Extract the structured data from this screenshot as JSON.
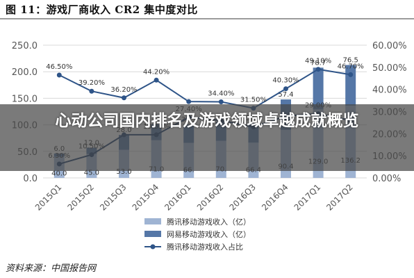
{
  "figure": {
    "title": "图 11：游戏厂商收入 CR2 集中度对比",
    "source": "资料来源：中国报告网"
  },
  "overlay": {
    "text": "心动公司国内排名及游戏领域卓越成就概览"
  },
  "colors": {
    "tencent_bar": "#9fb4d3",
    "netease_bar": "#5577a7",
    "line": "#2e5488",
    "grid": "#d8d8d8",
    "overlay": "#464646"
  },
  "chart_data": {
    "type": "bar",
    "categories": [
      "2015Q1",
      "2015Q2",
      "2015Q3",
      "2015Q4",
      "2016Q1",
      "2016Q2",
      "2016Q3",
      "2016Q4",
      "2017Q1",
      "2017Q2"
    ],
    "left_axis": {
      "ylim": [
        0,
        250
      ],
      "ticks": [
        "0.0",
        "50.0",
        "100.0",
        "150.0",
        "200.0",
        "250.0"
      ]
    },
    "right_axis": {
      "ylim": [
        0,
        60
      ],
      "ticks": [
        "0.00%",
        "10.00%",
        "20.00%",
        "30.00%",
        "40.00%",
        "50.00%",
        "60.00%"
      ]
    },
    "series": [
      {
        "name": "腾讯移动游戏收入（亿）",
        "kind": "bar",
        "axis": "left",
        "values": [
          40.0,
          45.0,
          53.0,
          71.0,
          66.0,
          70.0,
          66.4,
          90.4,
          129.0,
          136.2
        ],
        "labels": [
          "40.0",
          "45.0",
          "53.0",
          "71.0",
          "66.",
          "70.",
          "66.4",
          "90.4",
          "129.0",
          "136.2"
        ]
      },
      {
        "name": "网易移动游戏收入（亿）",
        "kind": "bar",
        "axis": "left",
        "values": [
          6.0,
          12.0,
          28.0,
          30.0,
          34.5,
          36.0,
          37.0,
          57.4,
          78.7,
          76.5
        ],
        "labels": [
          "6.0",
          "12.0",
          "28.0",
          "",
          "34.5",
          "",
          "37.0",
          "57.4",
          "78.7",
          "76.5"
        ]
      },
      {
        "name": "腾讯移动游戏收入占比",
        "kind": "line",
        "axis": "right",
        "values": [
          46.5,
          39.2,
          36.2,
          44.2,
          34.5,
          34.4,
          31.5,
          40.3,
          49.1,
          46.7
        ],
        "labels": [
          "46.50%",
          "39.20%",
          "36.20%",
          "44.20%",
          "",
          "34.40%",
          "31.50%",
          "40.30%",
          "49.10%",
          "46.70%"
        ]
      },
      {
        "name": "",
        "kind": "line",
        "axis": "right",
        "values": [
          6.3,
          10.5,
          19.5,
          19.5,
          27.4,
          26.0,
          23.0,
          28.0,
          29.0,
          26.0
        ],
        "labels": [
          "6.30%",
          "10.50%",
          "",
          "19.50%",
          "27.40%",
          "",
          "",
          "",
          "29.00%",
          ""
        ]
      }
    ],
    "legend_position": "bottom",
    "grid": true
  }
}
